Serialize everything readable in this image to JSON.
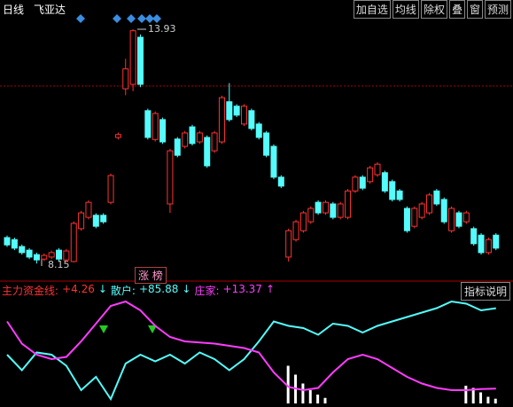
{
  "chart_data": {
    "type": "candlestick",
    "period": "日线",
    "stock": "飞亚达",
    "buttons": [
      "加自选",
      "均线",
      "除权",
      "叠",
      "窗",
      "预测"
    ],
    "up_color": "#ff3232",
    "down_color": "#54fcfc",
    "ylim": [
      7.98,
      14.43
    ],
    "candles": [
      [
        8.79,
        8.84,
        8.56,
        8.61
      ],
      [
        8.74,
        8.79,
        8.48,
        8.53
      ],
      [
        8.57,
        8.62,
        8.37,
        8.42
      ],
      [
        8.48,
        8.53,
        8.26,
        8.31
      ],
      [
        8.37,
        8.42,
        8.15,
        8.24
      ],
      [
        8.26,
        8.4,
        8.21,
        8.35
      ],
      [
        8.31,
        8.47,
        8.26,
        8.42
      ],
      [
        8.48,
        8.53,
        8.21,
        8.26
      ],
      [
        8.24,
        8.51,
        8.19,
        8.46
      ],
      [
        8.2,
        9.19,
        8.18,
        9.14
      ],
      [
        9.01,
        9.45,
        8.96,
        9.4
      ],
      [
        9.29,
        9.71,
        9.24,
        9.66
      ],
      [
        9.34,
        9.39,
        9.02,
        9.07
      ],
      [
        9.34,
        9.39,
        9.13,
        9.18
      ],
      [
        9.66,
        10.37,
        9.61,
        10.32
      ],
      [
        11.26,
        11.38,
        11.21,
        11.33
      ],
      [
        12.46,
        13.2,
        12.3,
        12.95
      ],
      [
        12.57,
        13.93,
        12.4,
        13.89
      ],
      [
        13.73,
        13.8,
        12.5,
        12.57
      ],
      [
        11.92,
        11.97,
        11.21,
        11.26
      ],
      [
        11.21,
        11.9,
        11.16,
        11.85
      ],
      [
        11.7,
        11.75,
        11.1,
        11.15
      ],
      [
        9.62,
        10.98,
        9.4,
        10.93
      ],
      [
        11.22,
        11.27,
        10.77,
        10.82
      ],
      [
        11.04,
        11.42,
        10.99,
        11.37
      ],
      [
        11.52,
        11.57,
        11.06,
        11.11
      ],
      [
        11.15,
        11.42,
        11.1,
        11.37
      ],
      [
        11.26,
        11.31,
        10.51,
        10.56
      ],
      [
        10.93,
        11.42,
        10.88,
        11.37
      ],
      [
        11.15,
        12.29,
        11.1,
        12.24
      ],
      [
        12.14,
        12.6,
        11.65,
        11.7
      ],
      [
        12.03,
        12.08,
        11.76,
        11.81
      ],
      [
        11.59,
        12.08,
        11.54,
        12.03
      ],
      [
        11.92,
        11.97,
        11.43,
        11.48
      ],
      [
        11.59,
        11.64,
        11.21,
        11.26
      ],
      [
        11.37,
        11.42,
        10.77,
        10.82
      ],
      [
        11.04,
        11.09,
        10.23,
        10.28
      ],
      [
        10.28,
        10.33,
        10.01,
        10.06
      ],
      [
        8.31,
        9.01,
        8.2,
        8.96
      ],
      [
        8.74,
        9.23,
        8.69,
        9.18
      ],
      [
        8.96,
        9.45,
        8.91,
        9.4
      ],
      [
        9.18,
        9.56,
        9.13,
        9.51
      ],
      [
        9.66,
        9.71,
        9.35,
        9.4
      ],
      [
        9.4,
        9.71,
        9.35,
        9.66
      ],
      [
        9.62,
        9.67,
        9.24,
        9.29
      ],
      [
        9.29,
        9.67,
        9.24,
        9.62
      ],
      [
        9.29,
        9.99,
        9.24,
        9.94
      ],
      [
        9.94,
        10.33,
        9.89,
        10.28
      ],
      [
        10.28,
        10.33,
        9.96,
        10.01
      ],
      [
        10.17,
        10.56,
        10.12,
        10.51
      ],
      [
        10.34,
        10.65,
        10.29,
        10.6
      ],
      [
        10.39,
        10.44,
        9.89,
        9.94
      ],
      [
        10.17,
        10.22,
        9.68,
        9.73
      ],
      [
        9.94,
        9.99,
        9.68,
        9.73
      ],
      [
        9.51,
        9.56,
        8.91,
        8.96
      ],
      [
        9.07,
        9.56,
        9.02,
        9.51
      ],
      [
        9.29,
        9.67,
        9.24,
        9.62
      ],
      [
        9.4,
        9.89,
        9.35,
        9.84
      ],
      [
        9.94,
        9.99,
        9.57,
        9.62
      ],
      [
        9.73,
        9.78,
        9.13,
        9.18
      ],
      [
        8.96,
        9.56,
        8.91,
        9.51
      ],
      [
        9.4,
        9.45,
        9.02,
        9.07
      ],
      [
        9.18,
        9.45,
        9.13,
        9.4
      ],
      [
        9.01,
        9.06,
        8.59,
        8.64
      ],
      [
        8.85,
        8.9,
        8.37,
        8.42
      ],
      [
        8.42,
        8.79,
        8.37,
        8.74
      ],
      [
        8.85,
        8.9,
        8.48,
        8.53
      ]
    ],
    "tag": "涨 榜",
    "indicator": {
      "type": "line",
      "ylim": [
        0,
        100
      ],
      "button": "指标说明",
      "bars": {
        "name": "主力资金线",
        "color": "#ff3232",
        "bar_color": "#ffffff",
        "x": [
          38,
          39,
          40,
          41,
          42,
          43,
          62,
          63,
          64,
          65,
          66
        ],
        "values": [
          34,
          26,
          18,
          12,
          8,
          5,
          16,
          14,
          10,
          6,
          4.26
        ],
        "value_label": "+4.26",
        "trend": "↓"
      },
      "x": [
        0,
        2,
        4,
        6,
        8,
        10,
        12,
        14,
        16,
        18,
        20,
        22,
        24,
        26,
        28,
        30,
        32,
        34,
        36,
        38,
        40,
        42,
        44,
        46,
        48,
        50,
        52,
        54,
        56,
        58,
        60,
        62,
        64,
        66
      ],
      "series": [
        {
          "name": "散户",
          "color": "#54fcfc",
          "value_label": "+85.88",
          "trend": "↓",
          "values": [
            44,
            30,
            46,
            44,
            34,
            12,
            24,
            4,
            36,
            44,
            38,
            44,
            36,
            46,
            40,
            30,
            40,
            56,
            74,
            70,
            68,
            62,
            72,
            70,
            64,
            70,
            74,
            78,
            82,
            86,
            92,
            90,
            84,
            85.88
          ]
        },
        {
          "name": "庄家",
          "color": "#ff3cff",
          "value_label": "+13.37",
          "trend": "↑",
          "values": [
            74,
            54,
            44,
            40,
            42,
            56,
            72,
            88,
            92,
            84,
            70,
            60,
            56,
            55,
            54,
            52,
            50,
            46,
            28,
            15,
            12,
            14,
            28,
            40,
            44,
            40,
            32,
            24,
            18,
            14,
            12,
            12,
            13,
            13.37
          ]
        }
      ]
    }
  }
}
